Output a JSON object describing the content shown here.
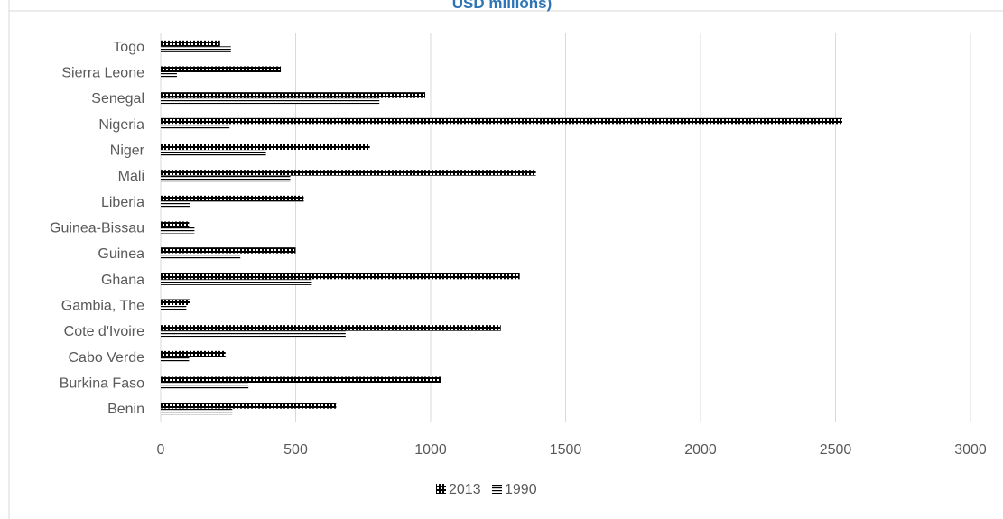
{
  "chart_data": {
    "type": "bar",
    "orientation": "horizontal",
    "title": "USD millions)",
    "categories": [
      "Togo",
      "Sierra Leone",
      "Senegal",
      "Nigeria",
      "Niger",
      "Mali",
      "Liberia",
      "Guinea-Bissau",
      "Guinea",
      "Ghana",
      "Gambia, The",
      "Cote d'Ivoire",
      "Cabo Verde",
      "Burkina Faso",
      "Benin"
    ],
    "series": [
      {
        "name": "2013",
        "pattern": "checker",
        "values": [
          220,
          445,
          980,
          2525,
          775,
          1390,
          530,
          105,
          500,
          1330,
          110,
          1260,
          240,
          1040,
          650
        ]
      },
      {
        "name": "1990",
        "pattern": "lines",
        "values": [
          260,
          60,
          810,
          255,
          390,
          480,
          110,
          125,
          295,
          560,
          95,
          685,
          105,
          325,
          265
        ]
      }
    ],
    "xlim": [
      0,
      3000
    ],
    "xticks": [
      "0",
      "500",
      "1000",
      "1500",
      "2000",
      "2500",
      "3000"
    ],
    "grid": true,
    "legend_position": "bottom",
    "colors": {
      "bar": "#000000",
      "grid": "#d9d9d9",
      "text": "#595959",
      "title": "#2e75b6",
      "border": "#d9d9d9"
    }
  }
}
